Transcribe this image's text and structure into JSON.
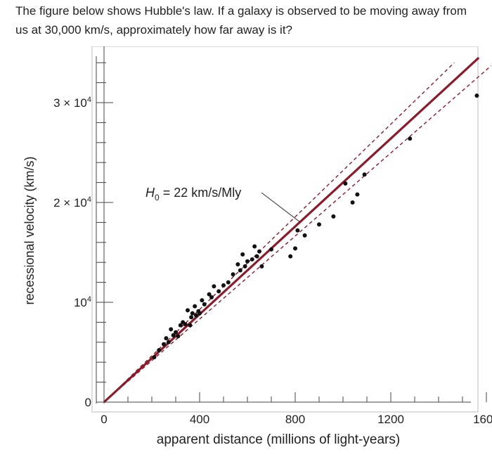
{
  "question": {
    "text": "The figure below shows Hubble's law. If a galaxy is observed to be moving away from us at 30,000 km/s, approximately how far away is it?"
  },
  "chart_data": {
    "type": "scatter",
    "title": "",
    "xlabel": "apparent distance (millions of light-years)",
    "ylabel": "recessional velocity (km/s)",
    "xlim": [
      0,
      1650
    ],
    "ylim": [
      0,
      34000
    ],
    "x_ticks": [
      {
        "value": 0,
        "label": "0"
      },
      {
        "value": 400,
        "label": "400"
      },
      {
        "value": 800,
        "label": "800"
      },
      {
        "value": 1200,
        "label": "1200"
      },
      {
        "value": 1600,
        "label": "1600"
      }
    ],
    "y_ticks": [
      {
        "value": 0,
        "label": "0",
        "sup": ""
      },
      {
        "value": 10000,
        "label": "10",
        "sup": "4"
      },
      {
        "value": 20000,
        "label": "2 × 10",
        "sup": "4"
      },
      {
        "value": 30000,
        "label": "3 × 10",
        "sup": "4"
      }
    ],
    "fit_line": {
      "slope": 22,
      "label_main": "H",
      "label_sub": "0",
      "label_rest": " = 22 km/s/Mly",
      "color": "#8b1a2b"
    },
    "bound_lines": [
      {
        "slope": 23.2,
        "style": "dashed"
      },
      {
        "slope": 20.8,
        "style": "dashed"
      }
    ],
    "grid": false,
    "points": [
      {
        "x": 210,
        "y": 4500
      },
      {
        "x": 230,
        "y": 5200
      },
      {
        "x": 250,
        "y": 5800
      },
      {
        "x": 260,
        "y": 6400
      },
      {
        "x": 270,
        "y": 6000
      },
      {
        "x": 280,
        "y": 7300
      },
      {
        "x": 290,
        "y": 6700
      },
      {
        "x": 300,
        "y": 7000
      },
      {
        "x": 310,
        "y": 6600
      },
      {
        "x": 320,
        "y": 7700
      },
      {
        "x": 330,
        "y": 8000
      },
      {
        "x": 340,
        "y": 7800
      },
      {
        "x": 350,
        "y": 9200
      },
      {
        "x": 360,
        "y": 7700
      },
      {
        "x": 365,
        "y": 8500
      },
      {
        "x": 370,
        "y": 8900
      },
      {
        "x": 380,
        "y": 9600
      },
      {
        "x": 385,
        "y": 8700
      },
      {
        "x": 395,
        "y": 9100
      },
      {
        "x": 400,
        "y": 8900
      },
      {
        "x": 410,
        "y": 10200
      },
      {
        "x": 420,
        "y": 9800
      },
      {
        "x": 440,
        "y": 10800
      },
      {
        "x": 450,
        "y": 10500
      },
      {
        "x": 460,
        "y": 11600
      },
      {
        "x": 480,
        "y": 11100
      },
      {
        "x": 500,
        "y": 11700
      },
      {
        "x": 520,
        "y": 12000
      },
      {
        "x": 540,
        "y": 12800
      },
      {
        "x": 560,
        "y": 13800
      },
      {
        "x": 570,
        "y": 13200
      },
      {
        "x": 580,
        "y": 14800
      },
      {
        "x": 590,
        "y": 13600
      },
      {
        "x": 600,
        "y": 14100
      },
      {
        "x": 620,
        "y": 14300
      },
      {
        "x": 630,
        "y": 15600
      },
      {
        "x": 640,
        "y": 14600
      },
      {
        "x": 650,
        "y": 15100
      },
      {
        "x": 660,
        "y": 13600
      },
      {
        "x": 700,
        "y": 15300
      },
      {
        "x": 780,
        "y": 14600
      },
      {
        "x": 800,
        "y": 15400
      },
      {
        "x": 810,
        "y": 17200
      },
      {
        "x": 840,
        "y": 16700
      },
      {
        "x": 900,
        "y": 17800
      },
      {
        "x": 960,
        "y": 18600
      },
      {
        "x": 1010,
        "y": 21900
      },
      {
        "x": 1040,
        "y": 20000
      },
      {
        "x": 1060,
        "y": 20800
      },
      {
        "x": 1090,
        "y": 22800
      },
      {
        "x": 1280,
        "y": 26400
      },
      {
        "x": 1560,
        "y": 30700
      }
    ],
    "point_color": "#111111"
  }
}
